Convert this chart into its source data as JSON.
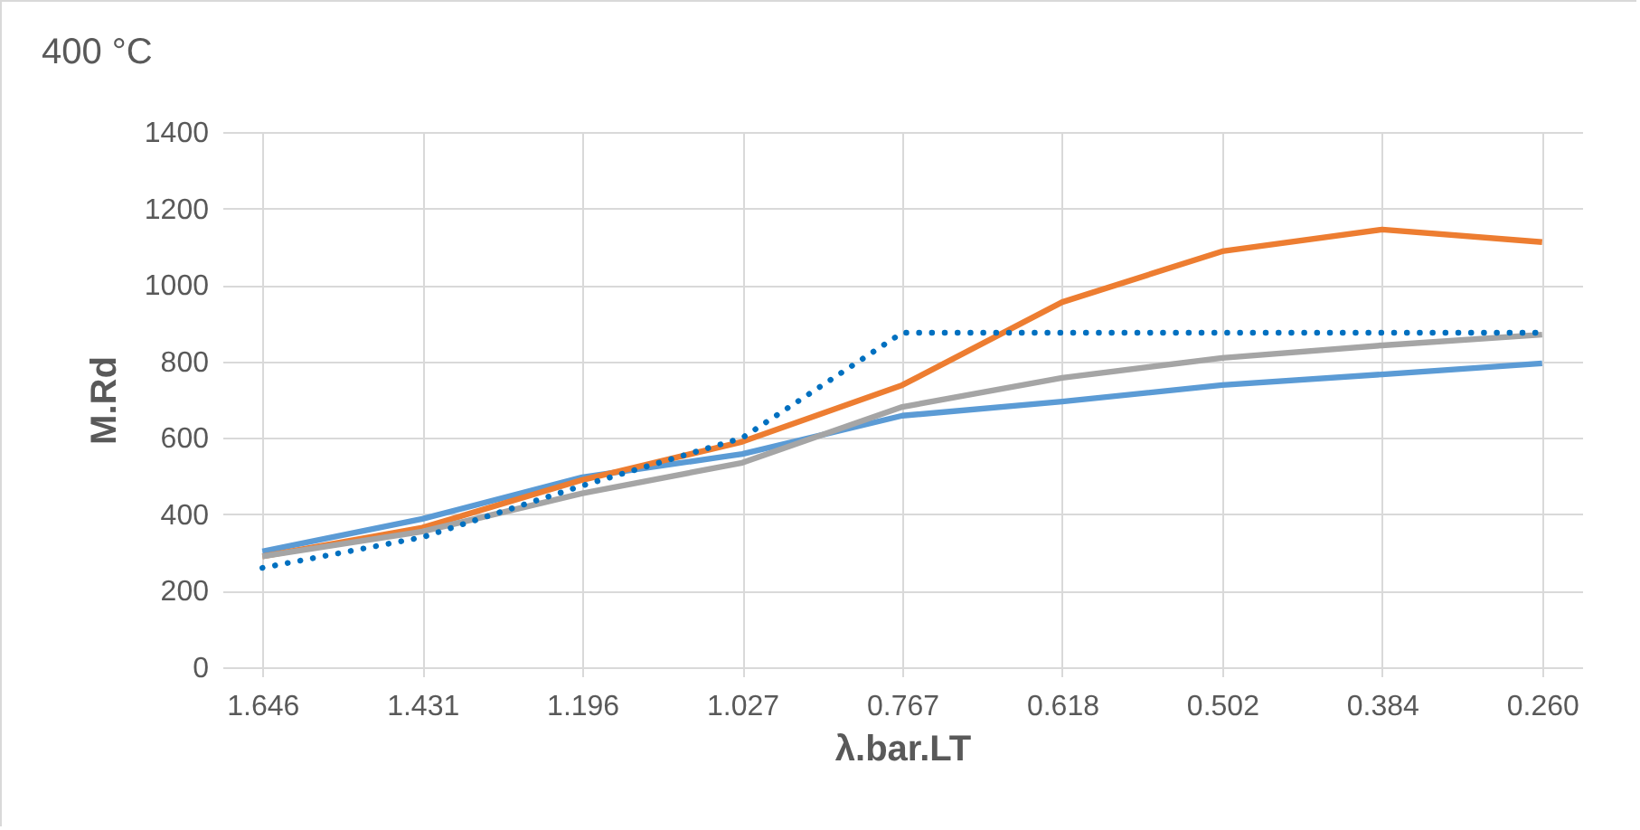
{
  "chart_data": {
    "type": "line",
    "title": "400 °C",
    "xlabel": "λ.bar.LT",
    "ylabel": "M.Rd",
    "categories": [
      "1.646",
      "1.431",
      "1.196",
      "1.027",
      "0.767",
      "0.618",
      "0.502",
      "0.384",
      "0.260"
    ],
    "series": [
      {
        "color": "#5b9bd5",
        "line_style": "solid",
        "values": [
          303,
          388,
          497,
          558,
          658,
          695,
          738,
          766,
          795
        ]
      },
      {
        "color": "#ed7d31",
        "line_style": "solid",
        "values": [
          290,
          365,
          490,
          590,
          738,
          955,
          1088,
          1145,
          1112
        ]
      },
      {
        "color": "#a5a5a5",
        "line_style": "solid",
        "values": [
          290,
          355,
          455,
          535,
          681,
          757,
          809,
          842,
          870
        ]
      },
      {
        "color": "#0070c0",
        "line_style": "dotted",
        "values": [
          260,
          340,
          475,
          600,
          875,
          875,
          875,
          875,
          875
        ]
      }
    ],
    "ylim": [
      0,
      1400
    ],
    "yticks": [
      0,
      200,
      400,
      600,
      800,
      1000,
      1200,
      1400
    ],
    "grid": true,
    "marker": "none"
  }
}
